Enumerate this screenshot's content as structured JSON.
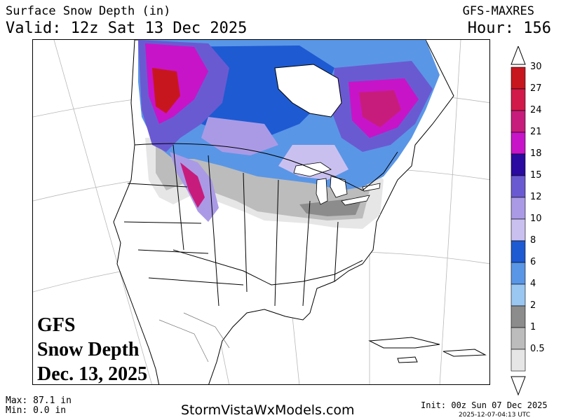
{
  "header": {
    "title": "Surface Snow Depth (in)",
    "valid": "Valid: 12z Sat 13 Dec 2025",
    "model": "GFS-MAXRES",
    "hour": "Hour: 156"
  },
  "overlay": {
    "line1": "GFS",
    "line2": "Snow Depth",
    "line3": "Dec. 13, 2025"
  },
  "colorbar": {
    "labels": [
      "30",
      "27",
      "24",
      "21",
      "18",
      "15",
      "12",
      "10",
      "8",
      "6",
      "4",
      "2",
      "1",
      "0.5"
    ],
    "colors": [
      "#c8161e",
      "#d21a4a",
      "#c81c7c",
      "#c814c8",
      "#2a0aa0",
      "#6a5ad2",
      "#aa9ae6",
      "#cac0f0",
      "#1e5ad2",
      "#5a96e6",
      "#9ac6f2",
      "#8c8c8c",
      "#bcbcbc",
      "#e6e6e6"
    ]
  },
  "footer": {
    "max": "Max: 87.1 in",
    "min": "Min: 0.0 in",
    "site": "StormVistaWxModels.com",
    "init": "Init: 00z Sun 07 Dec 2025",
    "generated": "2025-12-07-04:13 UTC"
  }
}
